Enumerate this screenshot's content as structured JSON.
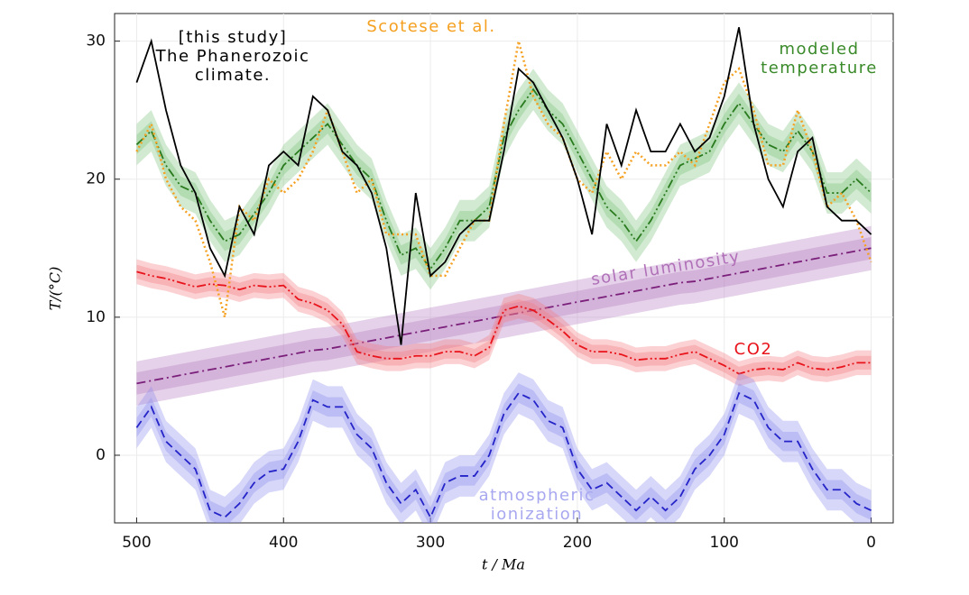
{
  "chart_data": {
    "type": "line",
    "xlabel": "t / Ma",
    "ylabel": "T/(°C)",
    "xlim": [
      515,
      -15
    ],
    "ylim": [
      -4.9,
      32
    ],
    "xticks": [
      500,
      400,
      300,
      200,
      100,
      0
    ],
    "yticks": [
      0,
      10,
      20,
      30
    ],
    "grid": true,
    "x": [
      500,
      490,
      480,
      470,
      460,
      450,
      440,
      430,
      420,
      410,
      400,
      390,
      380,
      370,
      360,
      350,
      340,
      330,
      320,
      310,
      300,
      290,
      280,
      270,
      260,
      250,
      240,
      230,
      220,
      210,
      200,
      190,
      180,
      170,
      160,
      150,
      140,
      130,
      120,
      110,
      100,
      90,
      80,
      70,
      60,
      50,
      40,
      30,
      20,
      10,
      0
    ],
    "series": [
      {
        "name": [
          "solar luminosity"
        ],
        "color": "#7a1f7a",
        "label_color": "#b070b8",
        "band_color": "#b47cc0",
        "style": "dashdot",
        "band": [
          0.8,
          1.6
        ],
        "values": [
          5.2,
          5.4,
          5.6,
          5.8,
          6.0,
          6.2,
          6.4,
          6.6,
          6.8,
          7.0,
          7.2,
          7.4,
          7.6,
          7.7,
          7.9,
          8.1,
          8.3,
          8.5,
          8.7,
          8.9,
          9.1,
          9.3,
          9.5,
          9.7,
          9.9,
          10.1,
          10.3,
          10.5,
          10.7,
          10.9,
          11.1,
          11.3,
          11.5,
          11.7,
          11.9,
          12.1,
          12.3,
          12.5,
          12.6,
          12.8,
          13.0,
          13.2,
          13.4,
          13.6,
          13.8,
          14.0,
          14.2,
          14.4,
          14.6,
          14.8,
          15.0
        ]
      },
      {
        "name": [
          "CO2"
        ],
        "color": "#e8131b",
        "label_color": "#e8131b",
        "band_color": "#f47c80",
        "style": "dashdotdot",
        "band": [
          0.5,
          0.9
        ],
        "values": [
          13.3,
          13,
          12.8,
          12.5,
          12.2,
          12.4,
          12.3,
          12,
          12.3,
          12.2,
          12.3,
          11.3,
          11,
          10.5,
          9.5,
          7.5,
          7.2,
          7,
          7,
          7.2,
          7.2,
          7.5,
          7.5,
          7.2,
          7.8,
          10.5,
          10.8,
          10.5,
          9.8,
          9,
          8,
          7.5,
          7.5,
          7.3,
          6.9,
          7,
          7,
          7.3,
          7.5,
          7,
          6.5,
          5.9,
          6.2,
          6.3,
          6.2,
          6.7,
          6.3,
          6.2,
          6.4,
          6.7,
          6.7
        ]
      },
      {
        "name": [
          "atmospheric",
          "ionization"
        ],
        "color": "#2424c8",
        "label_color": "#a8a8f0",
        "band_color": "#8c8cee",
        "style": "dashed",
        "band": [
          0.7,
          1.5
        ],
        "values": [
          2,
          3.5,
          1,
          0,
          -1,
          -4,
          -4.5,
          -3.5,
          -2,
          -1.2,
          -1,
          1,
          4,
          3.5,
          3.5,
          1.5,
          0.5,
          -2,
          -3.5,
          -2.5,
          -4.5,
          -2,
          -1.5,
          -1.5,
          0,
          3,
          4.5,
          4,
          2.5,
          2,
          -1,
          -2.5,
          -2,
          -3,
          -4,
          -3,
          -4,
          -3,
          -1,
          0,
          1.5,
          4.5,
          4,
          2,
          1,
          1,
          -1,
          -2.5,
          -2.5,
          -3.5,
          -4
        ]
      },
      {
        "name": [
          "modeled",
          "temperature"
        ],
        "color": "#2a7a1e",
        "label_color": "#3a8a2a",
        "band_color": "#7cc47c",
        "style": "dashdotdot",
        "band": [
          0.7,
          1.5
        ],
        "values": [
          22.5,
          23.5,
          21,
          19.5,
          19,
          17,
          15.5,
          16,
          17.5,
          19,
          21,
          22,
          23,
          24,
          22.5,
          21,
          20,
          17,
          14.5,
          15,
          13.5,
          15,
          17,
          17,
          18,
          23,
          25,
          26.5,
          25,
          24,
          22,
          20,
          18,
          17,
          15.5,
          17,
          19,
          21,
          21.5,
          22,
          24,
          25.5,
          24,
          22.5,
          22,
          23.5,
          22,
          19,
          19,
          20,
          19
        ]
      },
      {
        "name": [
          "Scotese et al."
        ],
        "color": "#f5a020",
        "label_color": "#f5a020",
        "style": "dotted",
        "values": [
          22,
          24,
          20,
          18,
          17,
          14,
          10,
          18,
          17,
          20,
          19,
          20,
          22,
          25,
          22,
          19,
          20,
          16,
          16,
          16,
          13,
          13,
          15,
          17,
          17,
          24,
          30,
          26,
          24,
          23,
          20,
          19,
          22,
          20,
          22,
          21,
          21,
          22,
          21,
          24,
          27,
          28,
          25,
          21,
          21,
          25,
          22,
          18,
          19,
          17,
          14
        ]
      },
      {
        "name": [
          "[this study]",
          "The Phanerozoic",
          "climate."
        ],
        "color": "#000000",
        "label_color": "#000000",
        "style": "solid",
        "values": [
          27,
          30,
          25,
          21,
          19,
          15,
          13,
          18,
          16,
          21,
          22,
          21,
          26,
          25,
          22,
          21,
          19,
          15,
          8,
          19,
          13,
          14,
          16,
          17,
          17,
          22,
          28,
          27,
          25,
          23,
          20,
          16,
          24,
          21,
          25,
          22,
          22,
          24,
          22,
          23,
          26,
          31,
          24,
          20,
          18,
          22,
          23,
          18,
          17,
          17,
          16
        ]
      }
    ]
  }
}
